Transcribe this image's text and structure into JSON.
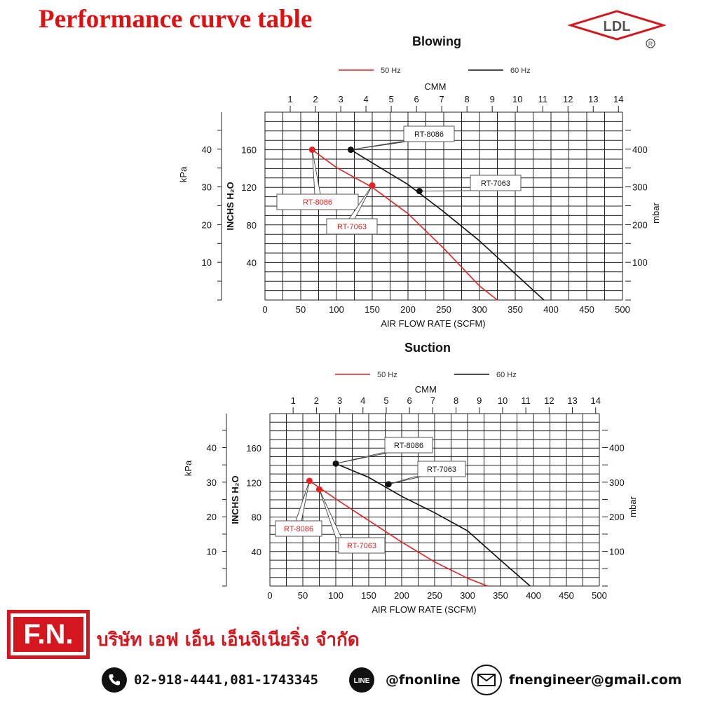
{
  "page": {
    "title": "Performance curve table"
  },
  "logo": {
    "text": "LDL",
    "mark": "R"
  },
  "chart_data": [
    {
      "type": "line",
      "title": "Blowing",
      "legend": [
        {
          "name": "50 Hz",
          "color": "#e82020"
        },
        {
          "name": "60 Hz",
          "color": "#111111"
        }
      ],
      "xlabel": "AIR FLOW RATE (SCFM)",
      "xlim": [
        0,
        500
      ],
      "xticks": [
        "0",
        "50",
        "100",
        "150",
        "200",
        "250",
        "300",
        "350",
        "400",
        "450",
        "500"
      ],
      "top_axis": {
        "label": "CMM",
        "ticks": [
          "1",
          "2",
          "3",
          "4",
          "5",
          "6",
          "7",
          "8",
          "9",
          "10",
          "11",
          "12",
          "13",
          "14"
        ]
      },
      "ylabel": "INCHS H₂O",
      "ylim": [
        0,
        200
      ],
      "yticks": [
        "40",
        "80",
        "120",
        "160"
      ],
      "left_axis": {
        "label": "kPa",
        "ticks": [
          "10",
          "20",
          "30",
          "40"
        ]
      },
      "right_axis": {
        "label": "mbar",
        "ticks": [
          "100",
          "200",
          "300",
          "400"
        ]
      },
      "series": [
        {
          "name": "50 Hz",
          "color": "#e82020",
          "x": [
            66,
            100,
            150,
            200,
            250,
            300,
            325
          ],
          "y": [
            160,
            141,
            120,
            92,
            55,
            15,
            0
          ]
        },
        {
          "name": "60 Hz",
          "color": "#111111",
          "x": [
            120,
            150,
            200,
            250,
            300,
            350,
            390
          ],
          "y": [
            160,
            146,
            123,
            94,
            63,
            28,
            0
          ]
        }
      ],
      "annotations": [
        {
          "label": "RT-8086",
          "x": 66,
          "y": 160,
          "color": "#e82020"
        },
        {
          "label": "RT-7063",
          "x": 150,
          "y": 122,
          "color": "#e82020"
        },
        {
          "label": "RT-8086",
          "x": 120,
          "y": 160,
          "color": "#111111"
        },
        {
          "label": "RT-7063",
          "x": 216,
          "y": 116,
          "color": "#111111"
        }
      ]
    },
    {
      "type": "line",
      "title": "Suction",
      "legend": [
        {
          "name": "50 Hz",
          "color": "#e82020"
        },
        {
          "name": "60 Hz",
          "color": "#111111"
        }
      ],
      "xlabel": "AIR FLOW RATE (SCFM)",
      "xlim": [
        0,
        500
      ],
      "xticks": [
        "0",
        "50",
        "100",
        "150",
        "200",
        "250",
        "300",
        "350",
        "400",
        "450",
        "500"
      ],
      "top_axis": {
        "label": "CMM",
        "ticks": [
          "1",
          "2",
          "3",
          "4",
          "5",
          "6",
          "7",
          "8",
          "9",
          "10",
          "11",
          "12",
          "13",
          "14"
        ]
      },
      "ylabel": "INCHS H₂O",
      "ylim": [
        0,
        200
      ],
      "yticks": [
        "40",
        "80",
        "120",
        "160"
      ],
      "left_axis": {
        "label": "kPa",
        "ticks": [
          "10",
          "20",
          "30",
          "40"
        ]
      },
      "right_axis": {
        "label": "mbar",
        "ticks": [
          "100",
          "200",
          "300",
          "400"
        ]
      },
      "series": [
        {
          "name": "50 Hz",
          "color": "#e82020",
          "x": [
            60,
            100,
            150,
            200,
            250,
            300,
            330
          ],
          "y": [
            122,
            101,
            76,
            51,
            28,
            9,
            0
          ]
        },
        {
          "name": "60 Hz",
          "color": "#111111",
          "x": [
            100,
            150,
            200,
            250,
            300,
            350,
            395
          ],
          "y": [
            142,
            126,
            104,
            85,
            64,
            30,
            0
          ]
        }
      ],
      "annotations": [
        {
          "label": "RT-8086",
          "x": 60,
          "y": 122,
          "color": "#e82020"
        },
        {
          "label": "RT-7063",
          "x": 75,
          "y": 112,
          "color": "#e82020"
        },
        {
          "label": "RT-8086",
          "x": 100,
          "y": 142,
          "color": "#111111"
        },
        {
          "label": "RT-7063",
          "x": 180,
          "y": 118,
          "color": "#111111"
        }
      ]
    }
  ],
  "footer": {
    "brand": "F.N.",
    "company": "บริษัท เอฟ เอ็น เอ็นจิเนียริ่ง จำกัด",
    "phone": "02-918-4441,081-1743345",
    "line_icon_text": "LINE",
    "line_id": "@fnonline",
    "email": "fnengineer@gmail.com"
  }
}
